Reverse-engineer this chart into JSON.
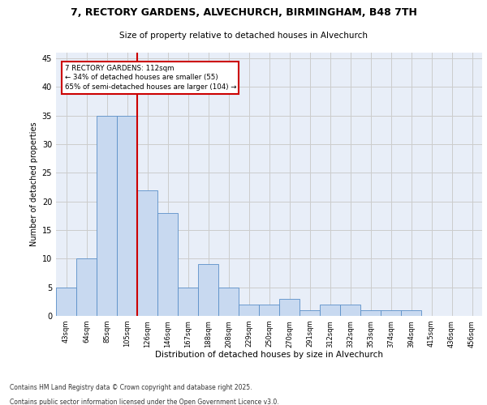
{
  "title_line1": "7, RECTORY GARDENS, ALVECHURCH, BIRMINGHAM, B48 7TH",
  "title_line2": "Size of property relative to detached houses in Alvechurch",
  "xlabel": "Distribution of detached houses by size in Alvechurch",
  "ylabel": "Number of detached properties",
  "categories": [
    "43sqm",
    "64sqm",
    "85sqm",
    "105sqm",
    "126sqm",
    "146sqm",
    "167sqm",
    "188sqm",
    "208sqm",
    "229sqm",
    "250sqm",
    "270sqm",
    "291sqm",
    "312sqm",
    "332sqm",
    "353sqm",
    "374sqm",
    "394sqm",
    "415sqm",
    "436sqm",
    "456sqm"
  ],
  "values": [
    5,
    10,
    35,
    35,
    22,
    18,
    5,
    9,
    5,
    2,
    2,
    3,
    1,
    2,
    2,
    1,
    1,
    1,
    0,
    0,
    0
  ],
  "bar_color": "#c8d9f0",
  "bar_edge_color": "#5a8fc8",
  "grid_color": "#cccccc",
  "background_color": "#e8eef8",
  "vline_color": "#cc0000",
  "annotation_text": "7 RECTORY GARDENS: 112sqm\n← 34% of detached houses are smaller (55)\n65% of semi-detached houses are larger (104) →",
  "annotation_box_color": "#cc0000",
  "ylim": [
    0,
    46
  ],
  "yticks": [
    0,
    5,
    10,
    15,
    20,
    25,
    30,
    35,
    40,
    45
  ],
  "footer_line1": "Contains HM Land Registry data © Crown copyright and database right 2025.",
  "footer_line2": "Contains public sector information licensed under the Open Government Licence v3.0."
}
